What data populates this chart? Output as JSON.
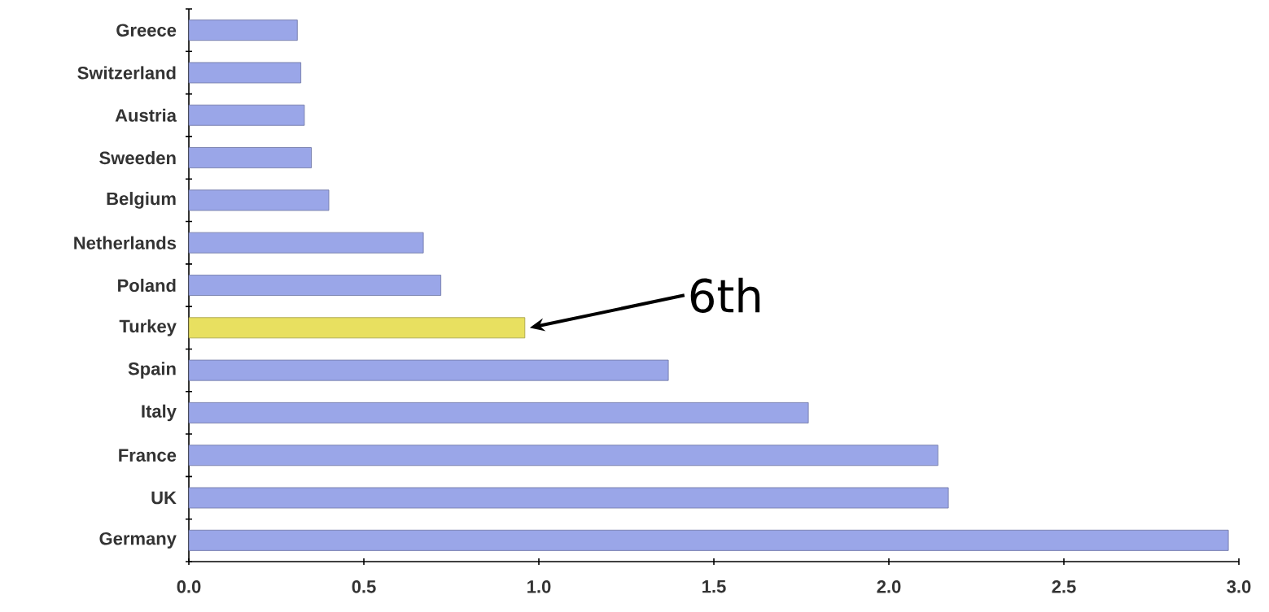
{
  "chart_data": {
    "type": "bar",
    "orientation": "horizontal",
    "categories": [
      "Greece",
      "Switzerland",
      "Austria",
      "Sweeden",
      "Belgium",
      "Netherlands",
      "Poland",
      "Turkey",
      "Spain",
      "Italy",
      "France",
      "UK",
      "Germany"
    ],
    "values": [
      0.31,
      0.32,
      0.33,
      0.35,
      0.4,
      0.67,
      0.72,
      0.96,
      1.37,
      1.77,
      2.14,
      2.17,
      2.97
    ],
    "colors": [
      "#9aa6e8",
      "#9aa6e8",
      "#9aa6e8",
      "#9aa6e8",
      "#9aa6e8",
      "#9aa6e8",
      "#9aa6e8",
      "#e8e060",
      "#9aa6e8",
      "#9aa6e8",
      "#9aa6e8",
      "#9aa6e8",
      "#9aa6e8"
    ],
    "xlim": [
      0,
      3
    ],
    "xticks": [
      {
        "value": 0,
        "label": "0.0"
      },
      {
        "value": 0.5,
        "label": "0.5"
      },
      {
        "value": 1,
        "label": "1.0"
      },
      {
        "value": 1.5,
        "label": "1.5"
      },
      {
        "value": 2,
        "label": "2.0"
      },
      {
        "value": 2.5,
        "label": "2.5"
      },
      {
        "value": 3,
        "label": "3.0"
      }
    ],
    "grid": false,
    "annotations": [
      "6th"
    ]
  }
}
